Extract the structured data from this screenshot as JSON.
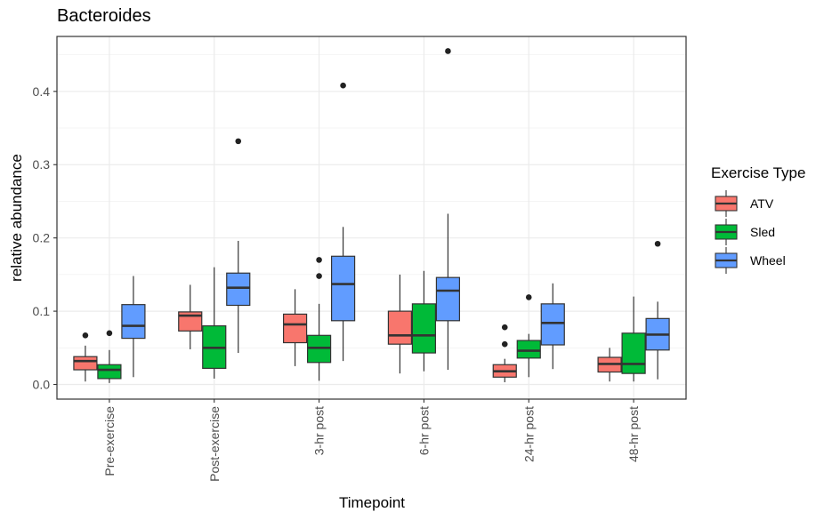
{
  "chart_data": {
    "type": "boxplot",
    "title": "Bacteroides",
    "xlabel": "Timepoint",
    "ylabel": "relative abundance",
    "ylim": [
      -0.02,
      0.475
    ],
    "yticks": [
      0.0,
      0.1,
      0.2,
      0.3,
      0.4
    ],
    "ytick_labels": [
      "0.0",
      "0.1",
      "0.2",
      "0.3",
      "0.4"
    ],
    "categories": [
      "Pre-exercise",
      "Post-exercise",
      "3-hr post",
      "6-hr post",
      "24-hr post",
      "48-hr post"
    ],
    "grid": true,
    "legend": {
      "title": "Exercise Type",
      "position": "right"
    },
    "series": [
      {
        "name": "ATV",
        "color": "#F8766D",
        "boxes": [
          {
            "whisker_low": 0.004,
            "q1": 0.02,
            "median": 0.032,
            "q3": 0.038,
            "whisker_high": 0.053,
            "outliers": [
              0.067
            ]
          },
          {
            "whisker_low": 0.048,
            "q1": 0.073,
            "median": 0.094,
            "q3": 0.099,
            "whisker_high": 0.136,
            "outliers": []
          },
          {
            "whisker_low": 0.025,
            "q1": 0.057,
            "median": 0.082,
            "q3": 0.096,
            "whisker_high": 0.13,
            "outliers": []
          },
          {
            "whisker_low": 0.015,
            "q1": 0.055,
            "median": 0.067,
            "q3": 0.1,
            "whisker_high": 0.15,
            "outliers": []
          },
          {
            "whisker_low": 0.003,
            "q1": 0.01,
            "median": 0.018,
            "q3": 0.027,
            "whisker_high": 0.035,
            "outliers": [
              0.055,
              0.078
            ]
          },
          {
            "whisker_low": 0.004,
            "q1": 0.017,
            "median": 0.028,
            "q3": 0.037,
            "whisker_high": 0.05,
            "outliers": []
          }
        ]
      },
      {
        "name": "Sled",
        "color": "#00BA38",
        "boxes": [
          {
            "whisker_low": 0.002,
            "q1": 0.008,
            "median": 0.02,
            "q3": 0.027,
            "whisker_high": 0.047,
            "outliers": [
              0.07
            ]
          },
          {
            "whisker_low": 0.008,
            "q1": 0.022,
            "median": 0.05,
            "q3": 0.08,
            "whisker_high": 0.16,
            "outliers": []
          },
          {
            "whisker_low": 0.005,
            "q1": 0.03,
            "median": 0.05,
            "q3": 0.067,
            "whisker_high": 0.11,
            "outliers": [
              0.148,
              0.17
            ]
          },
          {
            "whisker_low": 0.018,
            "q1": 0.043,
            "median": 0.067,
            "q3": 0.11,
            "whisker_high": 0.155,
            "outliers": []
          },
          {
            "whisker_low": 0.01,
            "q1": 0.036,
            "median": 0.046,
            "q3": 0.06,
            "whisker_high": 0.069,
            "outliers": [
              0.119
            ]
          },
          {
            "whisker_low": 0.004,
            "q1": 0.015,
            "median": 0.028,
            "q3": 0.07,
            "whisker_high": 0.12,
            "outliers": []
          }
        ]
      },
      {
        "name": "Wheel",
        "color": "#619CFF",
        "boxes": [
          {
            "whisker_low": 0.01,
            "q1": 0.063,
            "median": 0.08,
            "q3": 0.109,
            "whisker_high": 0.148,
            "outliers": []
          },
          {
            "whisker_low": 0.043,
            "q1": 0.108,
            "median": 0.132,
            "q3": 0.152,
            "whisker_high": 0.196,
            "outliers": [
              0.332
            ]
          },
          {
            "whisker_low": 0.032,
            "q1": 0.087,
            "median": 0.137,
            "q3": 0.175,
            "whisker_high": 0.215,
            "outliers": [
              0.408
            ]
          },
          {
            "whisker_low": 0.02,
            "q1": 0.087,
            "median": 0.128,
            "q3": 0.146,
            "whisker_high": 0.233,
            "outliers": [
              0.455
            ]
          },
          {
            "whisker_low": 0.021,
            "q1": 0.054,
            "median": 0.084,
            "q3": 0.11,
            "whisker_high": 0.138,
            "outliers": []
          },
          {
            "whisker_low": 0.007,
            "q1": 0.047,
            "median": 0.068,
            "q3": 0.09,
            "whisker_high": 0.113,
            "outliers": [
              0.192
            ]
          }
        ]
      }
    ]
  }
}
